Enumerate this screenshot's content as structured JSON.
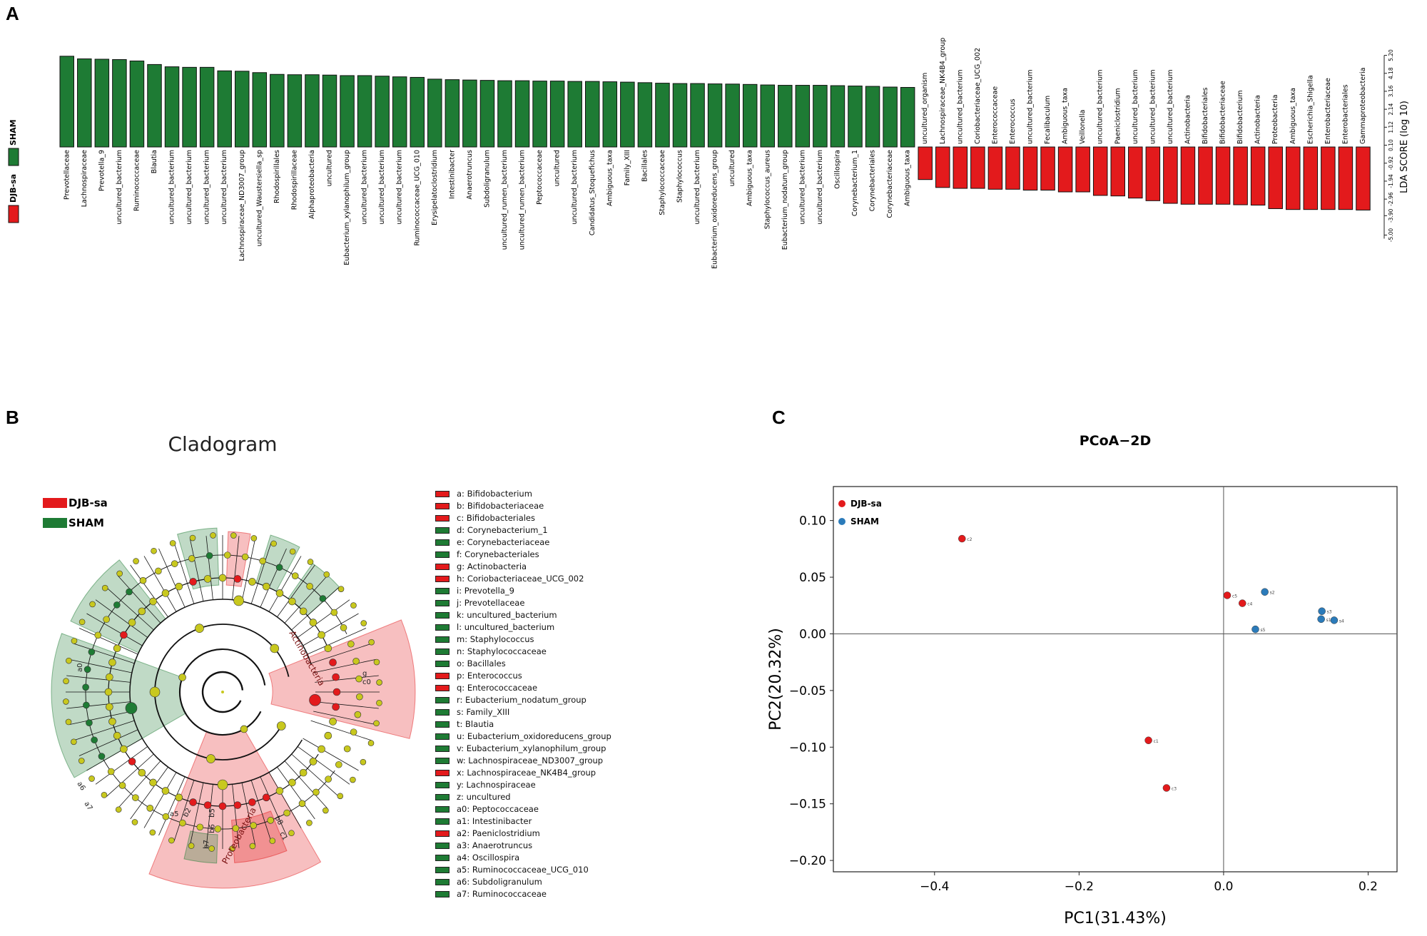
{
  "panels": {
    "a": "A",
    "b": "B",
    "c": "C"
  },
  "colors": {
    "djb": "#e31a1c",
    "sham": "#1e7b34",
    "node": "#c8c81e",
    "sham_point": "#2b7bba"
  },
  "chart_data": [
    {
      "type": "bar",
      "orientation": "vertical-lda",
      "legend": [
        {
          "name": "DJB-sa",
          "color": "#e31a1c"
        },
        {
          "name": "SHAM",
          "color": "#1e7b34"
        }
      ],
      "ylabel": "LDA SCORE (log 10)",
      "ylim": [
        -5.2,
        5.2
      ],
      "yticks": [
        "-5.00",
        "-3.90",
        "-2.96",
        "-1.94",
        "-0.92",
        "0.10",
        "1.12",
        "2.14",
        "3.16",
        "4.18",
        "5.20"
      ],
      "series": [
        {
          "name": "SHAM",
          "categories": [
            "Prevotellaceae",
            "Lachnospiraceae",
            "Prevotella_9",
            "uncultured_bacterium",
            "Ruminococcaceae",
            "Blautia",
            "uncultured_bacterium",
            "uncultured_bacterium",
            "uncultured_bacterium",
            "uncultured_bacterium",
            "Lachnospiraceae_ND3007_group",
            "uncultured_Waustersiella_sp",
            "Rhodospirillales",
            "Rhodospirillaceae",
            "Alphaproteobacteria",
            "uncultured",
            "Eubacterium_xylanophilum_group",
            "uncultured_bacterium",
            "uncultured_bacterium",
            "uncultured_bacterium",
            "Ruminococcaceae_UCG_010",
            "Erysipelatoclostridium",
            "Intestinibacter",
            "Anaerotruncus",
            "Subdoligranulum",
            "uncultured_rumen_bacterium",
            "uncultured_rumen_bacterium",
            "Peptococcaceae",
            "uncultured",
            "uncultured_bacterium",
            "Candidatus_Stoquefichus",
            "Ambiguous_taxa",
            "Family_XIII",
            "Bacillales",
            "Staphylococcaceae",
            "Staphylococcus",
            "uncultured_bacterium",
            "Eubacterium_oxidoreducens_group",
            "uncultured",
            "Ambiguous_taxa",
            "Staphylococcus_aureus",
            "Eubacterium_nodatum_group",
            "uncultured_bacterium",
            "uncultured_bacterium",
            "Oscillospira",
            "Corynebacterium_1",
            "Corynebacteriales",
            "Corynebacteriaceae",
            "Ambiguous_taxa"
          ],
          "values": [
            5.15,
            5.0,
            4.98,
            4.96,
            4.88,
            4.68,
            4.55,
            4.52,
            4.52,
            4.32,
            4.3,
            4.22,
            4.12,
            4.1,
            4.1,
            4.08,
            4.05,
            4.05,
            4.02,
            3.98,
            3.95,
            3.85,
            3.82,
            3.8,
            3.78,
            3.76,
            3.76,
            3.74,
            3.74,
            3.72,
            3.72,
            3.7,
            3.68,
            3.65,
            3.62,
            3.6,
            3.6,
            3.58,
            3.57,
            3.55,
            3.52,
            3.5,
            3.5,
            3.5,
            3.48,
            3.46,
            3.44,
            3.4,
            3.38
          ]
        },
        {
          "name": "DJB-sa",
          "categories": [
            "uncultured_organism",
            "Lachnospiraceae_NK4B4_group",
            "uncultured_bacterium",
            "Coriobacteriaceae_UCG_002",
            "Enterococcaceae",
            "Enterococcus",
            "uncultured_bacterium",
            "Fecalibaculum",
            "Ambiguous_taxa",
            "Veillonella",
            "uncultured_bacterium",
            "Paeniclostridium",
            "uncultured_bacterium",
            "uncultured_bacterium",
            "uncultured_bacterium",
            "Actinobacteria",
            "Bifidobacteriales",
            "Bifidobacteriaceae",
            "Bifidobacterium",
            "Actinobacteria",
            "Proteobacteria",
            "Ambiguous_taxa",
            "Escherichia_Shigella",
            "Enterobacteriaceae",
            "Enterobacteriales",
            "Gammaproteobacteria"
          ],
          "values": [
            -1.85,
            -2.3,
            -2.35,
            -2.35,
            -2.4,
            -2.4,
            -2.45,
            -2.45,
            -2.55,
            -2.55,
            -2.75,
            -2.78,
            -2.9,
            -3.05,
            -3.2,
            -3.25,
            -3.25,
            -3.25,
            -3.28,
            -3.3,
            -3.5,
            -3.55,
            -3.55,
            -3.55,
            -3.55,
            -3.58
          ]
        }
      ]
    },
    {
      "type": "cladogram",
      "title": "Cladogram",
      "legend": [
        {
          "name": "DJB-sa",
          "color": "#e31a1c"
        },
        {
          "name": "SHAM",
          "color": "#1e7b34"
        }
      ],
      "clade_labels": [
        "Actinobacteria",
        "Proteobacteria",
        "a7",
        "a6",
        "a0",
        "b7",
        "b6",
        "b5",
        "b2",
        "b8",
        "c1",
        "g",
        "c0",
        "a5"
      ],
      "keys": [
        {
          "text": "a: Bifidobacterium",
          "group": "DJB-sa"
        },
        {
          "text": "b: Bifidobacteriaceae",
          "group": "DJB-sa"
        },
        {
          "text": "c: Bifidobacteriales",
          "group": "DJB-sa"
        },
        {
          "text": "d: Corynebacterium_1",
          "group": "SHAM"
        },
        {
          "text": "e: Corynebacteriaceae",
          "group": "SHAM"
        },
        {
          "text": "f: Corynebacteriales",
          "group": "SHAM"
        },
        {
          "text": "g: Actinobacteria",
          "group": "DJB-sa"
        },
        {
          "text": "h: Coriobacteriaceae_UCG_002",
          "group": "DJB-sa"
        },
        {
          "text": "i: Prevotella_9",
          "group": "SHAM"
        },
        {
          "text": "j: Prevotellaceae",
          "group": "SHAM"
        },
        {
          "text": "k: uncultured_bacterium",
          "group": "SHAM"
        },
        {
          "text": "l: uncultured_bacterium",
          "group": "SHAM"
        },
        {
          "text": "m: Staphylococcus",
          "group": "SHAM"
        },
        {
          "text": "n: Staphylococcaceae",
          "group": "SHAM"
        },
        {
          "text": "o: Bacillales",
          "group": "SHAM"
        },
        {
          "text": "p: Enterococcus",
          "group": "DJB-sa"
        },
        {
          "text": "q: Enterococcaceae",
          "group": "DJB-sa"
        },
        {
          "text": "r: Eubacterium_nodatum_group",
          "group": "SHAM"
        },
        {
          "text": "s: Family_XIII",
          "group": "SHAM"
        },
        {
          "text": "t: Blautia",
          "group": "SHAM"
        },
        {
          "text": "u: Eubacterium_oxidoreducens_group",
          "group": "SHAM"
        },
        {
          "text": "v: Eubacterium_xylanophilum_group",
          "group": "SHAM"
        },
        {
          "text": "w: Lachnospiraceae_ND3007_group",
          "group": "SHAM"
        },
        {
          "text": "x: Lachnospiraceae_NK4B4_group",
          "group": "DJB-sa"
        },
        {
          "text": "y: Lachnospiraceae",
          "group": "SHAM"
        },
        {
          "text": "z: uncultured",
          "group": "SHAM"
        },
        {
          "text": "a0: Peptococcaceae",
          "group": "SHAM"
        },
        {
          "text": "a1: Intestinibacter",
          "group": "SHAM"
        },
        {
          "text": "a2: Paeniclostridium",
          "group": "DJB-sa"
        },
        {
          "text": "a3: Anaerotruncus",
          "group": "SHAM"
        },
        {
          "text": "a4: Oscillospira",
          "group": "SHAM"
        },
        {
          "text": "a5: Ruminococcaceae_UCG_010",
          "group": "SHAM"
        },
        {
          "text": "a6: Subdoligranulum",
          "group": "SHAM"
        },
        {
          "text": "a7: Ruminococcaceae",
          "group": "SHAM"
        }
      ]
    },
    {
      "type": "scatter",
      "title": "PCoA−2D",
      "xlabel": "PC1(31.43%)",
      "ylabel": "PC2(20.32%)",
      "xlim": [
        -0.54,
        0.24
      ],
      "ylim": [
        -0.21,
        0.13
      ],
      "xticks": [
        "−0.4",
        "−0.2",
        "0.0",
        "0.2"
      ],
      "xtick_values": [
        -0.4,
        -0.2,
        0.0,
        0.2
      ],
      "yticks": [
        "0.10",
        "0.05",
        "0.00",
        "−0.05",
        "−0.10",
        "−0.15",
        "−0.20"
      ],
      "ytick_values": [
        0.1,
        0.05,
        0.0,
        -0.05,
        -0.1,
        -0.15,
        -0.2
      ],
      "legend": [
        {
          "name": "DJB-sa",
          "color": "#e31a1c"
        },
        {
          "name": "SHAM",
          "color": "#2b7bba"
        }
      ],
      "series": [
        {
          "name": "DJB-sa",
          "points": [
            {
              "label": "c2",
              "x": -0.362,
              "y": 0.084
            },
            {
              "label": "c5",
              "x": 0.005,
              "y": 0.034
            },
            {
              "label": "c4",
              "x": 0.026,
              "y": 0.027
            },
            {
              "label": "c1",
              "x": -0.104,
              "y": -0.094
            },
            {
              "label": "c3",
              "x": -0.079,
              "y": -0.136
            }
          ]
        },
        {
          "name": "SHAM",
          "points": [
            {
              "label": "s2",
              "x": 0.057,
              "y": 0.037
            },
            {
              "label": "s3",
              "x": 0.136,
              "y": 0.02
            },
            {
              "label": "s1",
              "x": 0.135,
              "y": 0.013
            },
            {
              "label": "s4",
              "x": 0.153,
              "y": 0.012
            },
            {
              "label": "s5",
              "x": 0.044,
              "y": 0.004
            }
          ]
        }
      ]
    }
  ]
}
